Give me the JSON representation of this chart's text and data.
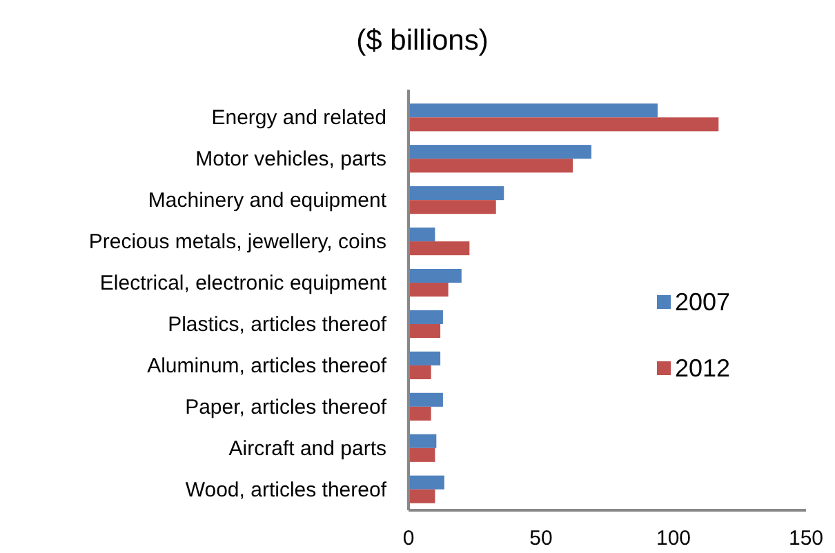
{
  "chart_data": {
    "type": "bar",
    "orientation": "horizontal",
    "title": "($ billions)",
    "categories": [
      "Energy and related",
      "Motor vehicles, parts",
      "Machinery and equipment",
      "Precious metals, jewellery, coins",
      "Electrical, electronic equipment",
      "Plastics, articles thereof",
      "Aluminum, articles thereof",
      "Paper, articles thereof",
      "Aircraft and parts",
      "Wood, articles thereof"
    ],
    "series": [
      {
        "name": "2007",
        "color": "#4f81bd",
        "values": [
          94,
          69,
          36,
          10,
          20,
          13,
          12,
          13,
          10.5,
          13.5
        ]
      },
      {
        "name": "2012",
        "color": "#c0504d",
        "values": [
          117,
          62,
          33,
          23,
          15,
          12,
          8.5,
          8.5,
          10,
          10
        ]
      }
    ],
    "xlim": [
      0,
      150
    ],
    "xticks": [
      0,
      50,
      100,
      150
    ],
    "grid": false,
    "legend": "right"
  }
}
